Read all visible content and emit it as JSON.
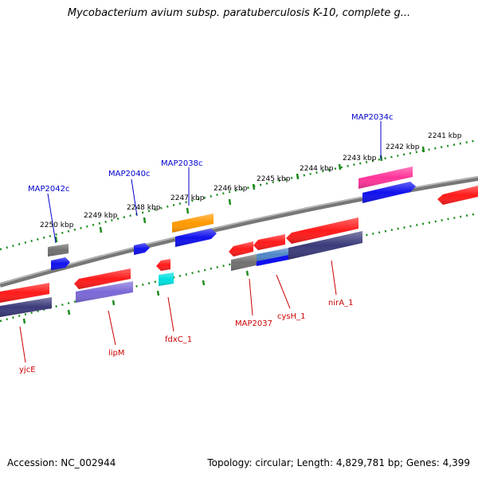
{
  "title": "Mycobacterium avium subsp. paratuberculosis K-10, complete g...",
  "footer": {
    "accession": "Accession: NC_002944",
    "stats": "Topology: circular; Length: 4,829,781 bp; Genes: 4,399"
  },
  "colors": {
    "backbone": "#8a8a8a",
    "tick": "#1e8c1e",
    "forward_label": "#0000cc",
    "reverse_label": "#cc0000",
    "red": "#ff1a1a",
    "blue": "#1010ee",
    "gray": "#707070",
    "orange": "#ff9900",
    "pink": "#ff3399",
    "cyan": "#00e0e0",
    "navy": "#3a3a7a",
    "violet": "#7b68d8",
    "steel": "#4f86c6"
  },
  "scale_labels": [
    "2241 kbp",
    "2242 kbp",
    "2243 kbp",
    "2244 kbp",
    "2245 kbp",
    "2246 kbp",
    "2247 kbp",
    "2248 kbp",
    "2249 kbp",
    "2250 kbp"
  ],
  "gene_labels": {
    "forward": [
      "MAP2034c",
      "MAP2038c",
      "MAP2040c",
      "MAP2042c"
    ],
    "reverse": [
      "yjcE",
      "lipM",
      "fdxC_1",
      "MAP2037",
      "cysH_1",
      "nirA_1"
    ]
  }
}
